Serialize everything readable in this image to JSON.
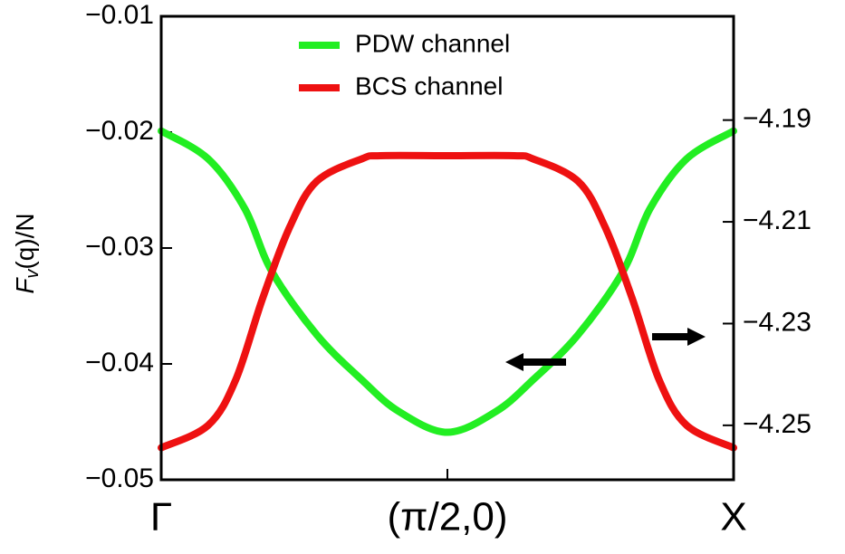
{
  "chart_data": {
    "type": "line",
    "ylabel": {
      "main": "F",
      "sub": "v",
      "rest": "(q)/N"
    },
    "xlim": [
      0,
      1
    ],
    "xticks": [
      {
        "value": 0,
        "label": "Γ"
      },
      {
        "value": 0.5,
        "label": "(π/2,0)"
      },
      {
        "value": 1,
        "label": "X"
      }
    ],
    "ylim": [
      -0.05,
      -0.01
    ],
    "yticks": [
      {
        "value": -0.01,
        "label": "−0.01"
      },
      {
        "value": -0.02,
        "label": "−0.02"
      },
      {
        "value": -0.03,
        "label": "−0.03"
      },
      {
        "value": -0.04,
        "label": "−0.04"
      },
      {
        "value": -0.05,
        "label": "−0.05"
      }
    ],
    "y2lim": [
      -4.2607,
      -4.1696
    ],
    "y2ticks": [
      {
        "value": -4.19,
        "label": "−4.19"
      },
      {
        "value": -4.21,
        "label": "−4.21"
      },
      {
        "value": -4.23,
        "label": "−4.23"
      },
      {
        "value": -4.25,
        "label": "−4.25"
      }
    ],
    "series": [
      {
        "name": "PDW channel",
        "color": "#22ee22",
        "x": [
          0,
          0.082,
          0.146,
          0.193,
          0.272,
          0.351,
          0.415,
          0.5,
          0.585,
          0.649,
          0.728,
          0.807,
          0.854,
          0.918,
          1
        ],
        "values": [
          -0.0199,
          -0.0223,
          -0.0266,
          -0.032,
          -0.0375,
          -0.0414,
          -0.0441,
          -0.0459,
          -0.0441,
          -0.0414,
          -0.0375,
          -0.032,
          -0.0266,
          -0.0223,
          -0.0199
        ]
      },
      {
        "name": "BCS channel",
        "color": "#ee1111",
        "axis": "y2",
        "x": [
          0,
          0.082,
          0.13,
          0.177,
          0.225,
          0.272,
          0.351,
          0.383,
          0.5,
          0.617,
          0.649,
          0.728,
          0.775,
          0.823,
          0.87,
          0.918,
          1
        ],
        "values": [
          -4.2544,
          -4.25,
          -4.2411,
          -4.2251,
          -4.2109,
          -4.202,
          -4.1976,
          -4.197,
          -4.197,
          -4.197,
          -4.1976,
          -4.202,
          -4.2109,
          -4.2251,
          -4.2411,
          -4.25,
          -4.2544
        ]
      }
    ]
  }
}
